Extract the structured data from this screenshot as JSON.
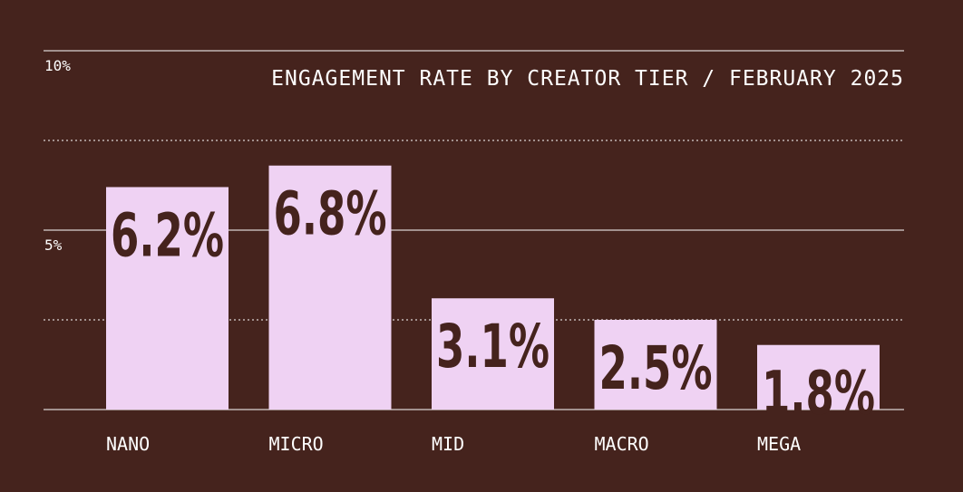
{
  "chart_data": {
    "type": "bar",
    "title": "ENGAGEMENT RATE BY CREATOR TIER / FEBRUARY 2025",
    "categories": [
      "NANO",
      "MICRO",
      "MID",
      "MACRO",
      "MEGA"
    ],
    "values": [
      6.2,
      6.8,
      3.1,
      2.5,
      1.8
    ],
    "value_labels": [
      "6.2%",
      "6.8%",
      "3.1%",
      "2.5%",
      "1.8%"
    ],
    "ylim": [
      0,
      10
    ],
    "y_ticks": [
      {
        "value": 10,
        "label": "10%"
      },
      {
        "value": 5,
        "label": "5%"
      }
    ],
    "gridlines": {
      "solid": [
        0,
        5,
        10
      ],
      "dotted": [
        2.5,
        7.5
      ]
    },
    "xlabel": "",
    "ylabel": "",
    "legend": "none",
    "colors": {
      "background": "#45231d",
      "bar": "#efd2f3",
      "bar_label": "#45231d",
      "text": "#ffffff",
      "grid": "#ffffff"
    }
  }
}
